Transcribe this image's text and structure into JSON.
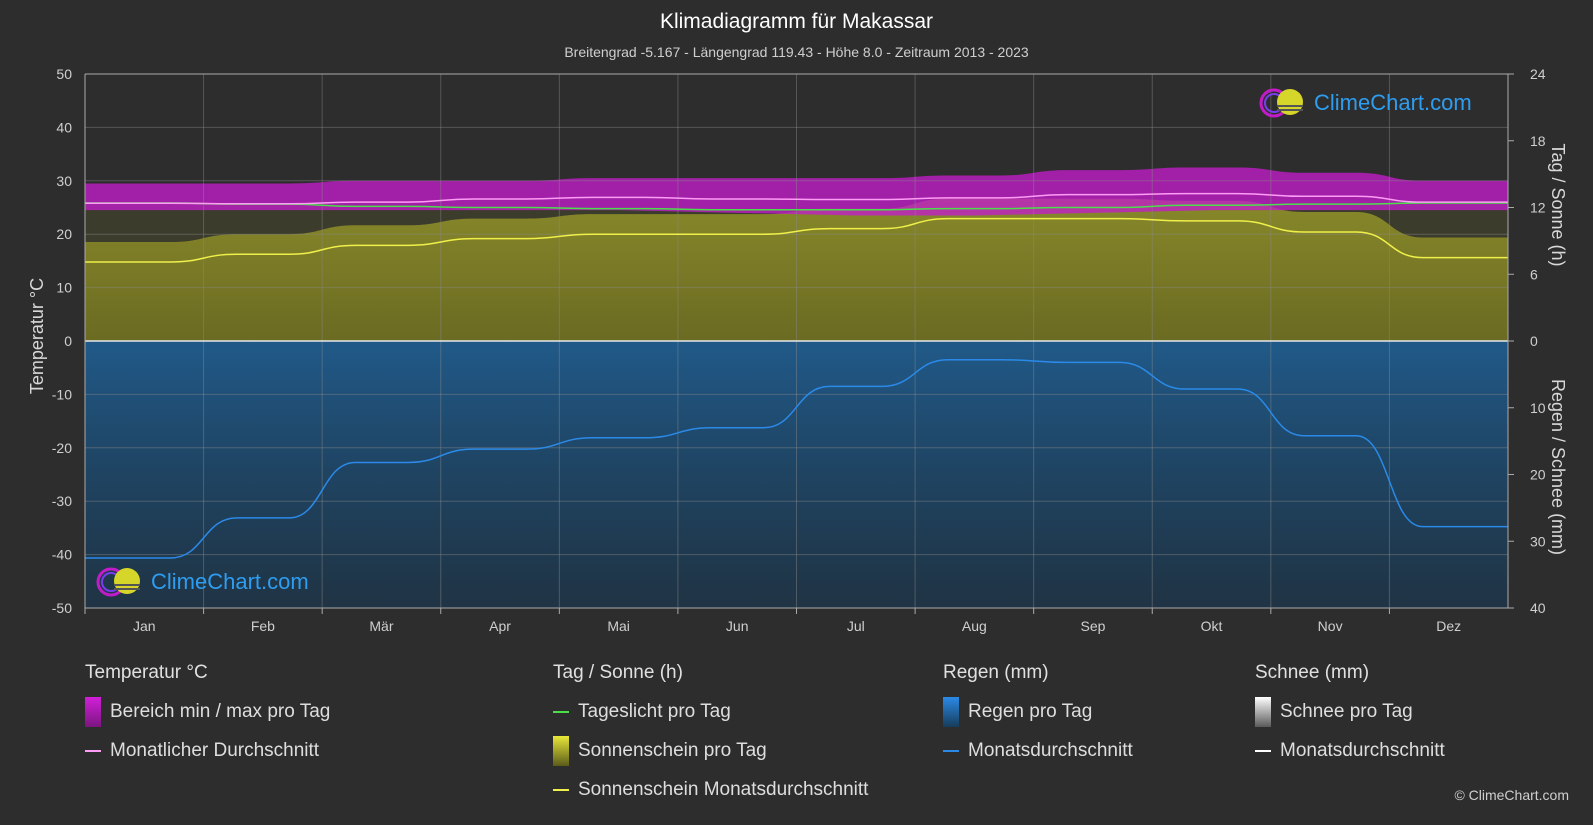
{
  "title": "Klimadiagramm für Makassar",
  "subtitle": "Breitengrad -5.167 - Längengrad 119.43 - Höhe 8.0 - Zeitraum 2013 - 2023",
  "copyright": "© ClimeChart.com",
  "logo_text": "ClimeChart.com",
  "colors": {
    "background": "#2d2d2d",
    "temp_range": "#c21cc9",
    "temp_avg": "#ff9cf5",
    "daylight": "#4be04b",
    "sunshine_fill": "#8c8c2a",
    "sunshine_avg": "#f0f04a",
    "rain_fill": "#1f5f94",
    "rain_avg": "#2b8ae8",
    "snow_avg": "#ffffff",
    "logo": "#2e9df0"
  },
  "legend": {
    "temperature": {
      "heading": "Temperatur °C",
      "items": [
        "Bereich min / max pro Tag",
        "Monatlicher Durchschnitt"
      ]
    },
    "sun": {
      "heading": "Tag / Sonne (h)",
      "items": [
        "Tageslicht pro Tag",
        "Sonnenschein pro Tag",
        "Sonnenschein Monatsdurchschnitt"
      ]
    },
    "rain": {
      "heading": "Regen (mm)",
      "items": [
        "Regen pro Tag",
        "Monatsdurchschnitt"
      ]
    },
    "snow": {
      "heading": "Schnee (mm)",
      "items": [
        "Schnee pro Tag",
        "Monatsdurchschnitt"
      ]
    }
  },
  "chart_data": {
    "type": "area",
    "categories": [
      "Jan",
      "Feb",
      "Mär",
      "Apr",
      "Mai",
      "Jun",
      "Jul",
      "Aug",
      "Sep",
      "Okt",
      "Nov",
      "Dez"
    ],
    "axes": {
      "y_left": {
        "label": "Temperatur °C",
        "range": [
          -50,
          50
        ],
        "ticks": [
          50,
          40,
          30,
          20,
          10,
          0,
          -10,
          -20,
          -30,
          -40,
          -50
        ]
      },
      "y_right_top": {
        "label": "Tag / Sonne (h)",
        "range": [
          0,
          24
        ],
        "ticks": [
          24,
          18,
          12,
          6,
          0
        ]
      },
      "y_right_bottom": {
        "label": "Regen / Schnee (mm)",
        "range": [
          0,
          40
        ],
        "ticks": [
          0,
          10,
          20,
          30,
          40
        ]
      }
    },
    "grid": true,
    "series": [
      {
        "name": "Bereich min / max pro Tag",
        "kind": "band",
        "unit": "°C",
        "min": [
          24.5,
          24.5,
          24.5,
          24.5,
          24.5,
          24.0,
          23.5,
          23.5,
          24.0,
          24.5,
          24.5,
          24.5
        ],
        "max": [
          29.5,
          29.5,
          30.0,
          30.0,
          30.5,
          30.5,
          30.5,
          31.0,
          32.0,
          32.5,
          31.5,
          30.0
        ]
      },
      {
        "name": "Monatlicher Durchschnitt",
        "kind": "line",
        "unit": "°C",
        "values": [
          25.8,
          25.7,
          26.0,
          26.6,
          26.9,
          26.6,
          26.5,
          26.8,
          27.4,
          27.6,
          27.1,
          26.0
        ]
      },
      {
        "name": "Tageslicht pro Tag",
        "kind": "line",
        "unit": "h",
        "values": [
          12.4,
          12.3,
          12.1,
          12.0,
          11.9,
          11.8,
          11.8,
          11.9,
          12.0,
          12.2,
          12.3,
          12.4
        ]
      },
      {
        "name": "Sonnenschein Monatsdurchschnitt",
        "kind": "line",
        "unit": "h",
        "values": [
          7.1,
          7.8,
          8.6,
          9.2,
          9.6,
          9.6,
          10.1,
          11.0,
          11.0,
          10.8,
          9.8,
          7.5
        ]
      },
      {
        "name": "Monatsdurchschnitt Regen",
        "kind": "line",
        "unit": "mm",
        "values": [
          32.5,
          26.5,
          18.2,
          16.2,
          14.5,
          13.0,
          6.8,
          2.8,
          3.2,
          7.2,
          14.2,
          27.8
        ]
      },
      {
        "name": "Monatsdurchschnitt Schnee",
        "kind": "line",
        "unit": "mm",
        "values": [
          0,
          0,
          0,
          0,
          0,
          0,
          0,
          0,
          0,
          0,
          0,
          0
        ]
      }
    ]
  }
}
